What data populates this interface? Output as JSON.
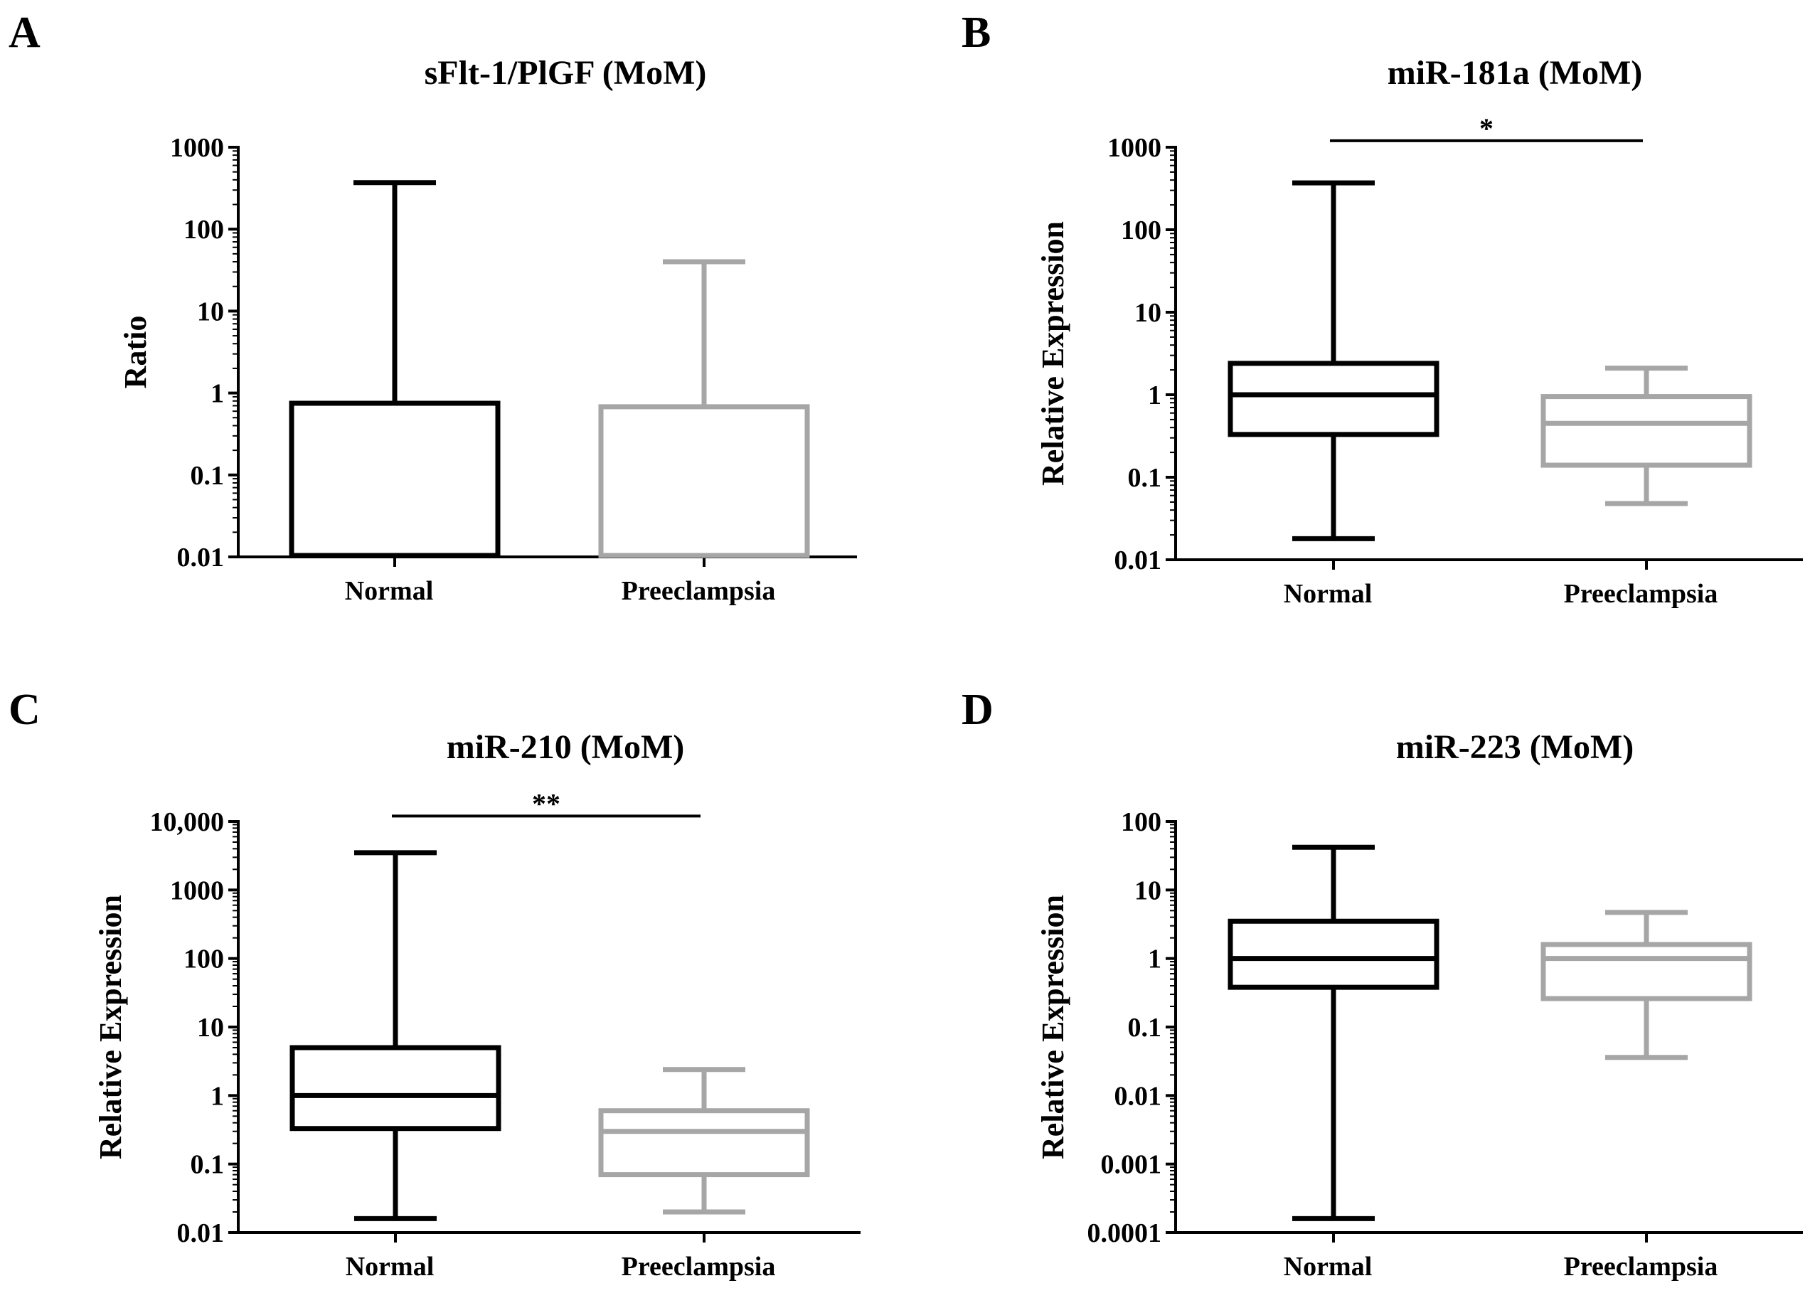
{
  "figure": {
    "panels": [
      "A",
      "B",
      "C",
      "D"
    ]
  },
  "colors": {
    "normal": "#000000",
    "preeclampsia": "#a6a6a6",
    "axis": "#000000"
  },
  "chart_data": [
    {
      "panel": "A",
      "type": "bar",
      "title": "sFlt-1/PlGF (MoM)",
      "xlabel": "",
      "ylabel": "Ratio",
      "yscale": "log",
      "ylim": [
        0.01,
        1000
      ],
      "ticks": [
        {
          "value": 0.01,
          "label": "0.01"
        },
        {
          "value": 0.1,
          "label": "0.1"
        },
        {
          "value": 1,
          "label": "1"
        },
        {
          "value": 10,
          "label": "10"
        },
        {
          "value": 100,
          "label": "100"
        },
        {
          "value": 1000,
          "label": "1000"
        }
      ],
      "categories": [
        "Normal",
        "Preeclampsia"
      ],
      "series": [
        {
          "name": "Normal",
          "value": 0.75,
          "error_upper": 370
        },
        {
          "name": "Preeclampsia",
          "value": 0.68,
          "error_upper": 40
        }
      ],
      "significance": null
    },
    {
      "panel": "B",
      "type": "box",
      "title": "miR-181a (MoM)",
      "xlabel": "",
      "ylabel": "Relative Expression",
      "yscale": "log",
      "ylim": [
        0.01,
        1000
      ],
      "ticks": [
        {
          "value": 0.01,
          "label": "0.01"
        },
        {
          "value": 0.1,
          "label": "0.1"
        },
        {
          "value": 1,
          "label": "1"
        },
        {
          "value": 10,
          "label": "10"
        },
        {
          "value": 100,
          "label": "100"
        },
        {
          "value": 1000,
          "label": "1000"
        }
      ],
      "categories": [
        "Normal",
        "Preeclampsia"
      ],
      "series": [
        {
          "name": "Normal",
          "min": 0.018,
          "q1": 0.33,
          "median": 1.0,
          "q3": 2.4,
          "max": 370
        },
        {
          "name": "Preeclampsia",
          "min": 0.048,
          "q1": 0.14,
          "median": 0.45,
          "q3": 0.95,
          "max": 2.1
        }
      ],
      "significance": {
        "label": "*",
        "y": 1200
      }
    },
    {
      "panel": "C",
      "type": "box",
      "title": "miR-210 (MoM)",
      "xlabel": "",
      "ylabel": "Relative Expression",
      "yscale": "log",
      "ylim": [
        0.01,
        10000
      ],
      "ticks": [
        {
          "value": 0.01,
          "label": "0.01"
        },
        {
          "value": 0.1,
          "label": "0.1"
        },
        {
          "value": 1,
          "label": "1"
        },
        {
          "value": 10,
          "label": "10"
        },
        {
          "value": 100,
          "label": "100"
        },
        {
          "value": 1000,
          "label": "1000"
        },
        {
          "value": 10000,
          "label": "10,000"
        }
      ],
      "categories": [
        "Normal",
        "Preeclampsia"
      ],
      "series": [
        {
          "name": "Normal",
          "min": 0.016,
          "q1": 0.33,
          "median": 1.0,
          "q3": 5.0,
          "max": 3500
        },
        {
          "name": "Preeclampsia",
          "min": 0.02,
          "q1": 0.07,
          "median": 0.3,
          "q3": 0.6,
          "max": 2.4
        }
      ],
      "significance": {
        "label": "**",
        "y": 12000
      }
    },
    {
      "panel": "D",
      "type": "box",
      "title": "miR-223 (MoM)",
      "xlabel": "",
      "ylabel": "Relative Expression",
      "yscale": "log",
      "ylim": [
        0.0001,
        100
      ],
      "ticks": [
        {
          "value": 0.0001,
          "label": "0.0001"
        },
        {
          "value": 0.001,
          "label": "0.001"
        },
        {
          "value": 0.01,
          "label": "0.01"
        },
        {
          "value": 0.1,
          "label": "0.1"
        },
        {
          "value": 1,
          "label": "1"
        },
        {
          "value": 10,
          "label": "10"
        },
        {
          "value": 100,
          "label": "100"
        }
      ],
      "categories": [
        "Normal",
        "Preeclampsia"
      ],
      "series": [
        {
          "name": "Normal",
          "min": 0.00016,
          "q1": 0.38,
          "median": 1.0,
          "q3": 3.5,
          "max": 42
        },
        {
          "name": "Preeclampsia",
          "min": 0.036,
          "q1": 0.26,
          "median": 1.0,
          "q3": 1.6,
          "max": 4.7
        }
      ],
      "significance": null
    }
  ]
}
